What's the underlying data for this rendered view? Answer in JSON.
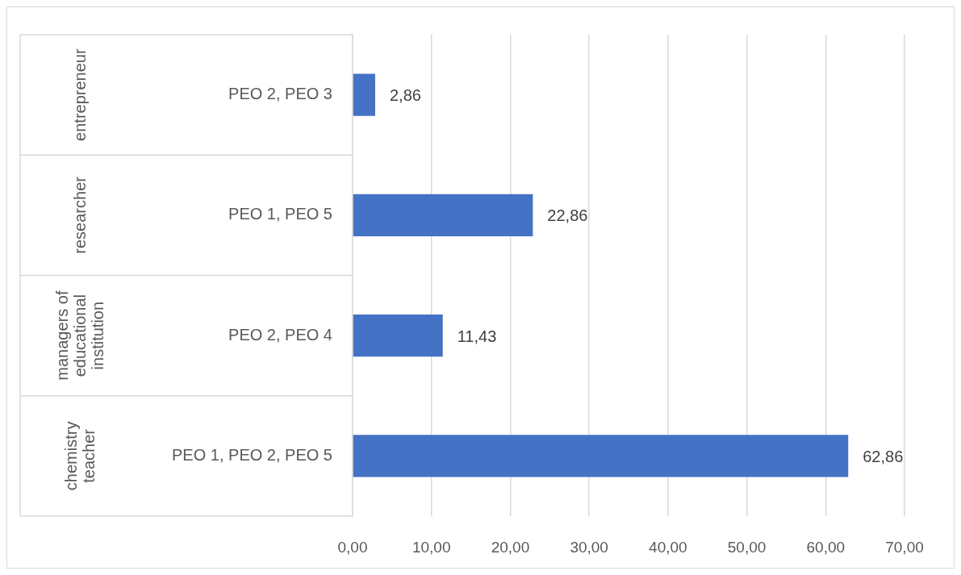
{
  "chart_data": {
    "type": "bar",
    "orientation": "horizontal",
    "categories": [
      "PEO 2, PEO 3",
      "PEO 1, PEO 5",
      "PEO 2, PEO 4",
      "PEO 1, PEO 2, PEO 5"
    ],
    "values": [
      2.86,
      22.86,
      11.43,
      62.86
    ],
    "color": "#4472c4",
    "value_labels": [
      "2,86",
      "22,86",
      "11,43",
      "62,86"
    ],
    "xlim": [
      0,
      70
    ],
    "xticks": [
      {
        "value": 0,
        "label": "0,00"
      },
      {
        "value": 10,
        "label": "10,00"
      },
      {
        "value": 20,
        "label": "20,00"
      },
      {
        "value": 30,
        "label": "30,00"
      },
      {
        "value": 40,
        "label": "40,00"
      },
      {
        "value": 50,
        "label": "50,00"
      },
      {
        "value": 60,
        "label": "60,00"
      },
      {
        "value": 70,
        "label": "70,00"
      }
    ],
    "grid": "x",
    "annotations": [
      "entrepreneur",
      "researcher",
      "managers of educational institution",
      "chemistry teacher"
    ]
  }
}
